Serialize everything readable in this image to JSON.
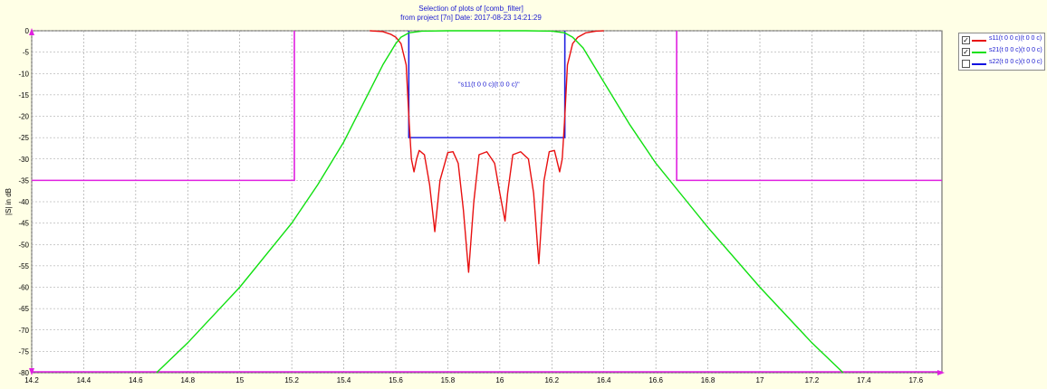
{
  "title": {
    "line1": "Selection of plots of [comb_filter]",
    "line2": "from project [7n]    Date: 2017-08-23 14:21:29"
  },
  "legend": {
    "items": [
      {
        "label": "s11(t 0 0 c)(t 0 0 c)",
        "checked": true,
        "color": "#e81010"
      },
      {
        "label": "s21(t 0 0 c)(t 0 0 c)",
        "checked": true,
        "color": "#10e010"
      },
      {
        "label": "s22(t 0 0 c)(t 0 0 c)",
        "checked": false,
        "color": "#1010e0"
      }
    ]
  },
  "chart_data": {
    "type": "line",
    "title": "Selection of plots of [comb_filter]",
    "xlabel": "",
    "ylabel": "|S| in dB",
    "xlim": [
      14.2,
      17.7
    ],
    "ylim": [
      -80,
      0
    ],
    "xticks": [
      "14.2",
      "14.4",
      "14.6",
      "14.8",
      "15",
      "15.2",
      "15.4",
      "15.6",
      "15.8",
      "16",
      "16.2",
      "16.4",
      "16.6",
      "16.8",
      "17",
      "17.2",
      "17.4",
      "17.6"
    ],
    "yticks": [
      "0",
      "-5",
      "-10",
      "-15",
      "-20",
      "-25",
      "-30",
      "-35",
      "-40",
      "-45",
      "-50",
      "-55",
      "-60",
      "-65",
      "-70",
      "-75",
      "-80"
    ],
    "grid": true,
    "annotation": "\"s11(t 0 0 c)(t 0 0 c)\"",
    "series": [
      {
        "name": "s11(t 0 0 c)(t 0 0 c)",
        "color": "#e81010",
        "x": [
          15.5,
          15.55,
          15.58,
          15.6,
          15.62,
          15.64,
          15.65,
          15.66,
          15.67,
          15.68,
          15.69,
          15.71,
          15.73,
          15.75,
          15.77,
          15.8,
          15.82,
          15.84,
          15.86,
          15.88,
          15.9,
          15.92,
          15.95,
          15.98,
          16.0,
          16.02,
          16.03,
          16.05,
          16.08,
          16.11,
          16.13,
          16.15,
          16.17,
          16.19,
          16.21,
          16.23,
          16.24,
          16.25,
          16.26,
          16.28,
          16.3,
          16.33,
          16.37,
          16.4
        ],
        "y": [
          0,
          -0.2,
          -0.8,
          -1.5,
          -3,
          -8,
          -20,
          -30,
          -33,
          -30,
          -28,
          -29,
          -36,
          -47,
          -35,
          -28.5,
          -28.3,
          -31,
          -42,
          -56.5,
          -40,
          -29,
          -28.3,
          -31,
          -38,
          -44.5,
          -38,
          -29,
          -28.3,
          -30,
          -38,
          -54.5,
          -35,
          -28.3,
          -28,
          -33,
          -30,
          -20,
          -8,
          -3,
          -1.5,
          -0.5,
          -0.1,
          0
        ]
      },
      {
        "name": "s21(t 0 0 c)(t 0 0 c)",
        "color": "#10e010",
        "x": [
          14.68,
          14.8,
          15.0,
          15.2,
          15.3,
          15.4,
          15.5,
          15.55,
          15.6,
          15.62,
          15.65,
          15.7,
          15.8,
          15.95,
          16.1,
          16.2,
          16.25,
          16.28,
          16.32,
          16.4,
          16.5,
          16.6,
          16.8,
          17.0,
          17.2,
          17.32
        ],
        "y": [
          -80,
          -73,
          -60,
          -45,
          -36,
          -26,
          -14,
          -8,
          -3,
          -1.5,
          -0.5,
          -0.1,
          0,
          0,
          0,
          -0.1,
          -0.5,
          -1.5,
          -4,
          -12,
          -22,
          -31,
          -46,
          -60,
          -73,
          -80
        ]
      }
    ],
    "masks": [
      {
        "name": "stopband-low",
        "color": "#e020e0",
        "x": [
          14.2,
          15.21,
          15.21
        ],
        "y": [
          -35,
          -35,
          0
        ]
      },
      {
        "name": "stopband-high",
        "color": "#e020e0",
        "x": [
          16.68,
          16.68,
          17.7
        ],
        "y": [
          0,
          -35,
          -35
        ]
      },
      {
        "name": "passband-return-loss",
        "color": "#2020e0",
        "x": [
          15.65,
          15.65,
          16.25,
          16.25
        ],
        "y": [
          0,
          -25,
          -25,
          0
        ]
      }
    ]
  }
}
